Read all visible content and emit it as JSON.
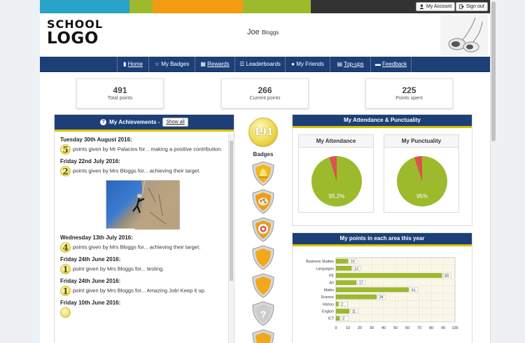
{
  "header": {
    "colors": [
      "#29a3c8",
      "#9cba2c",
      "#f39c12",
      "#f39c12",
      "#9cba2c",
      "#9cba2c",
      "#333333",
      "#333333"
    ],
    "account_button": "My Account",
    "signout_button": "Sign out",
    "logo_line1": "SCHOOL",
    "logo_line2": "LOGO",
    "user_first": "Joe",
    "user_last": "Bloggs"
  },
  "nav": {
    "items": [
      {
        "icon": "chart-icon",
        "label": "Home"
      },
      {
        "icon": "star-icon",
        "label": "My Badges"
      },
      {
        "icon": "grid-icon",
        "label": "Rewards"
      },
      {
        "icon": "list-icon",
        "label": "Leaderboards"
      },
      {
        "icon": "user-icon",
        "label": "My Friends"
      },
      {
        "icon": "card-icon",
        "label": "Top-ups"
      },
      {
        "icon": "comment-icon",
        "label": "Feedback"
      }
    ]
  },
  "stats": [
    {
      "value": "491",
      "label": "Total points"
    },
    {
      "value": "266",
      "label": "Current points"
    },
    {
      "value": "225",
      "label": "Points spent"
    }
  ],
  "achievements": {
    "title": "My Achievements -",
    "show_all": "Show all",
    "entries": [
      {
        "date": "Tuesday 30th August 2016:",
        "points": "5",
        "text": "points given by Mr Palacios for... making a positive contribution."
      },
      {
        "date": "Friday 22nd July 2016:",
        "points": "2",
        "text": "points given by Mrs Bloggs for... achieving their target."
      },
      {
        "date": "Wednesday 13th July 2016:",
        "points": "4",
        "text": "points given by Mrs Bloggs for... achieving their target."
      },
      {
        "date": "Friday 24th June 2016:",
        "points": "1",
        "text": "point given by Mrs Bloggs for... testing."
      },
      {
        "date": "Friday 24th June 2016:",
        "points": "1",
        "text": "point given by Mrs Bloggs for... Amazing Job! Keep it up."
      },
      {
        "date": "Friday 10th June 2016:",
        "points": "",
        "text": ""
      }
    ]
  },
  "badges": {
    "total": "491",
    "label": "Badges",
    "items": [
      {
        "icon": "bell-badge-icon",
        "color": "#f2b51a"
      },
      {
        "icon": "palette-badge-icon",
        "color": "#f39c12"
      },
      {
        "icon": "target-badge-icon",
        "color": "#e8a020"
      },
      {
        "icon": "shield-badge-icon",
        "color": "#f2a81d"
      },
      {
        "icon": "shield-badge-icon",
        "color": "#f2a81d"
      },
      {
        "icon": "question-badge-icon",
        "color": "#cccccc"
      },
      {
        "icon": "shield-badge-icon",
        "color": "#f2a81d"
      }
    ]
  },
  "attendance": {
    "title": "My Attendance & Punctuality",
    "attendance_label": "My Attendance",
    "attendance_value": 95.2,
    "attendance_text": "95.2%",
    "punctuality_label": "My Punctuality",
    "punctuality_value": 95,
    "punctuality_text": "95%",
    "main_color": "#9cba2c",
    "rest_color": "#d9534f"
  },
  "points_chart": {
    "title": "My points in each area this year"
  },
  "chart_data": {
    "type": "bar",
    "orientation": "horizontal",
    "categories": [
      "Business Studies",
      "Languages",
      "PE",
      "Art",
      "Maths",
      "Science",
      "History",
      "English",
      "ICT"
    ],
    "values": [
      10,
      13,
      89,
      17,
      61,
      34,
      2,
      11,
      3
    ],
    "xlim": [
      0,
      100
    ],
    "xticks": [
      "0",
      "10",
      "20",
      "30",
      "40",
      "50",
      "60",
      "70",
      "80",
      "90",
      "100"
    ],
    "grid": true,
    "color": "#9cba2c"
  }
}
